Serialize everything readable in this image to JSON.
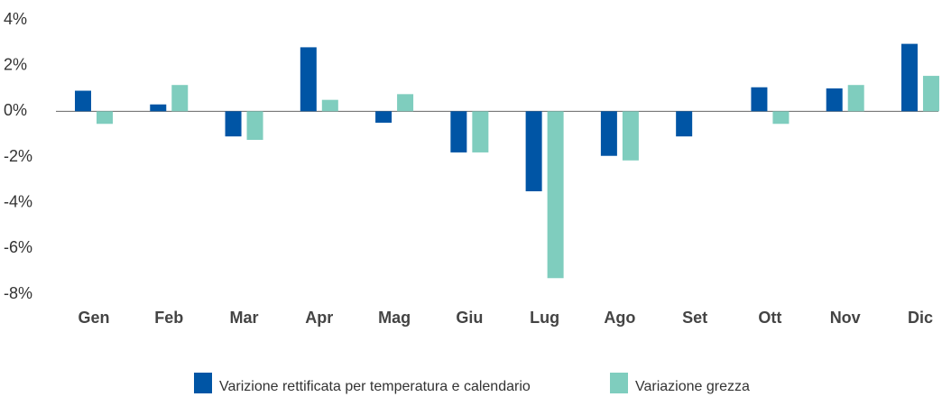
{
  "chart_data": {
    "type": "bar",
    "categories": [
      "Gen",
      "Feb",
      "Mar",
      "Apr",
      "Mag",
      "Giu",
      "Lug",
      "Ago",
      "Set",
      "Ott",
      "Nov",
      "Dic"
    ],
    "series": [
      {
        "name": "Varizione rettificata per temperatura e calendario",
        "color": "#0055a5",
        "values": [
          0.9,
          0.3,
          -1.1,
          2.8,
          -0.5,
          -1.8,
          -3.5,
          -1.95,
          -1.1,
          1.05,
          1.0,
          2.95
        ]
      },
      {
        "name": "Variazione grezza",
        "color": "#7fcdbe",
        "values": [
          -0.55,
          1.15,
          -1.25,
          0.5,
          0.75,
          -1.8,
          -7.3,
          -2.15,
          null,
          -0.55,
          1.15,
          1.55
        ]
      }
    ],
    "ylim": [
      -8,
      4
    ],
    "yticks": [
      {
        "value": 4,
        "label": "4%"
      },
      {
        "value": 2,
        "label": "2%"
      },
      {
        "value": 0,
        "label": "0%"
      },
      {
        "value": -2,
        "label": "-2%"
      },
      {
        "value": -4,
        "label": "-4%"
      },
      {
        "value": -6,
        "label": "-6%"
      },
      {
        "value": -8,
        "label": "-8%"
      }
    ],
    "legend": "bottom"
  }
}
